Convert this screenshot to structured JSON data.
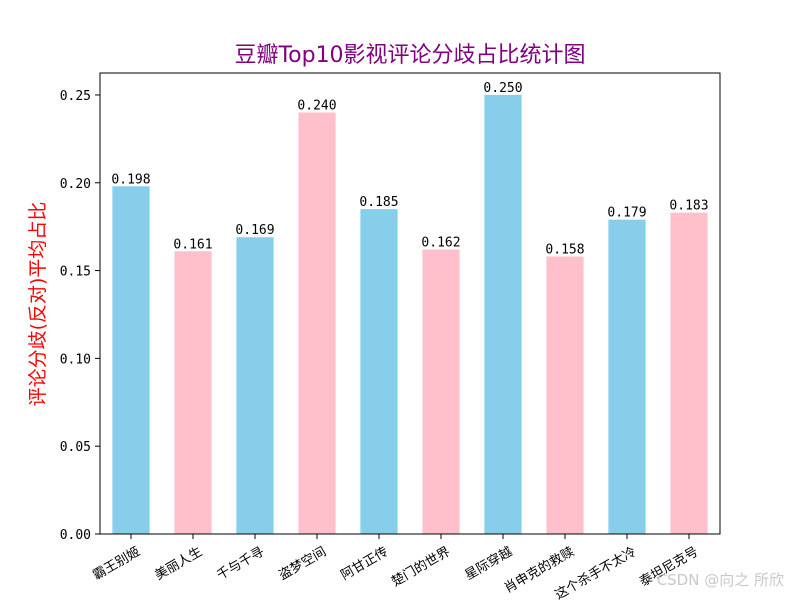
{
  "chart_data": {
    "type": "bar",
    "title": "豆瓣Top10影视评论分歧占比统计图",
    "xlabel": "",
    "ylabel": "评论分歧(反对)平均占比",
    "categories": [
      "霸王别姬",
      "美丽人生",
      "千与千寻",
      "盗梦空间",
      "阿甘正传",
      "楚门的世界",
      "星际穿越",
      "肖申克的救赎",
      "这个杀手不太冷",
      "泰坦尼克号"
    ],
    "values": [
      0.198,
      0.161,
      0.169,
      0.24,
      0.185,
      0.162,
      0.25,
      0.158,
      0.179,
      0.183
    ],
    "data_labels": [
      "0.198",
      "0.161",
      "0.169",
      "0.240",
      "0.185",
      "0.162",
      "0.250",
      "0.158",
      "0.179",
      "0.183"
    ],
    "ylim": [
      0,
      0.2625
    ],
    "yticks": [
      0.0,
      0.05,
      0.1,
      0.15,
      0.2,
      0.25
    ],
    "ytick_labels": [
      "0.00",
      "0.05",
      "0.10",
      "0.15",
      "0.20",
      "0.25"
    ],
    "bar_colors": [
      "#87CEEB",
      "#FFC0CB"
    ],
    "title_color": "#800080",
    "ylabel_color": "#FF0000",
    "grid": false,
    "legend": "none"
  },
  "watermark": "CSDN @向之 所欣"
}
